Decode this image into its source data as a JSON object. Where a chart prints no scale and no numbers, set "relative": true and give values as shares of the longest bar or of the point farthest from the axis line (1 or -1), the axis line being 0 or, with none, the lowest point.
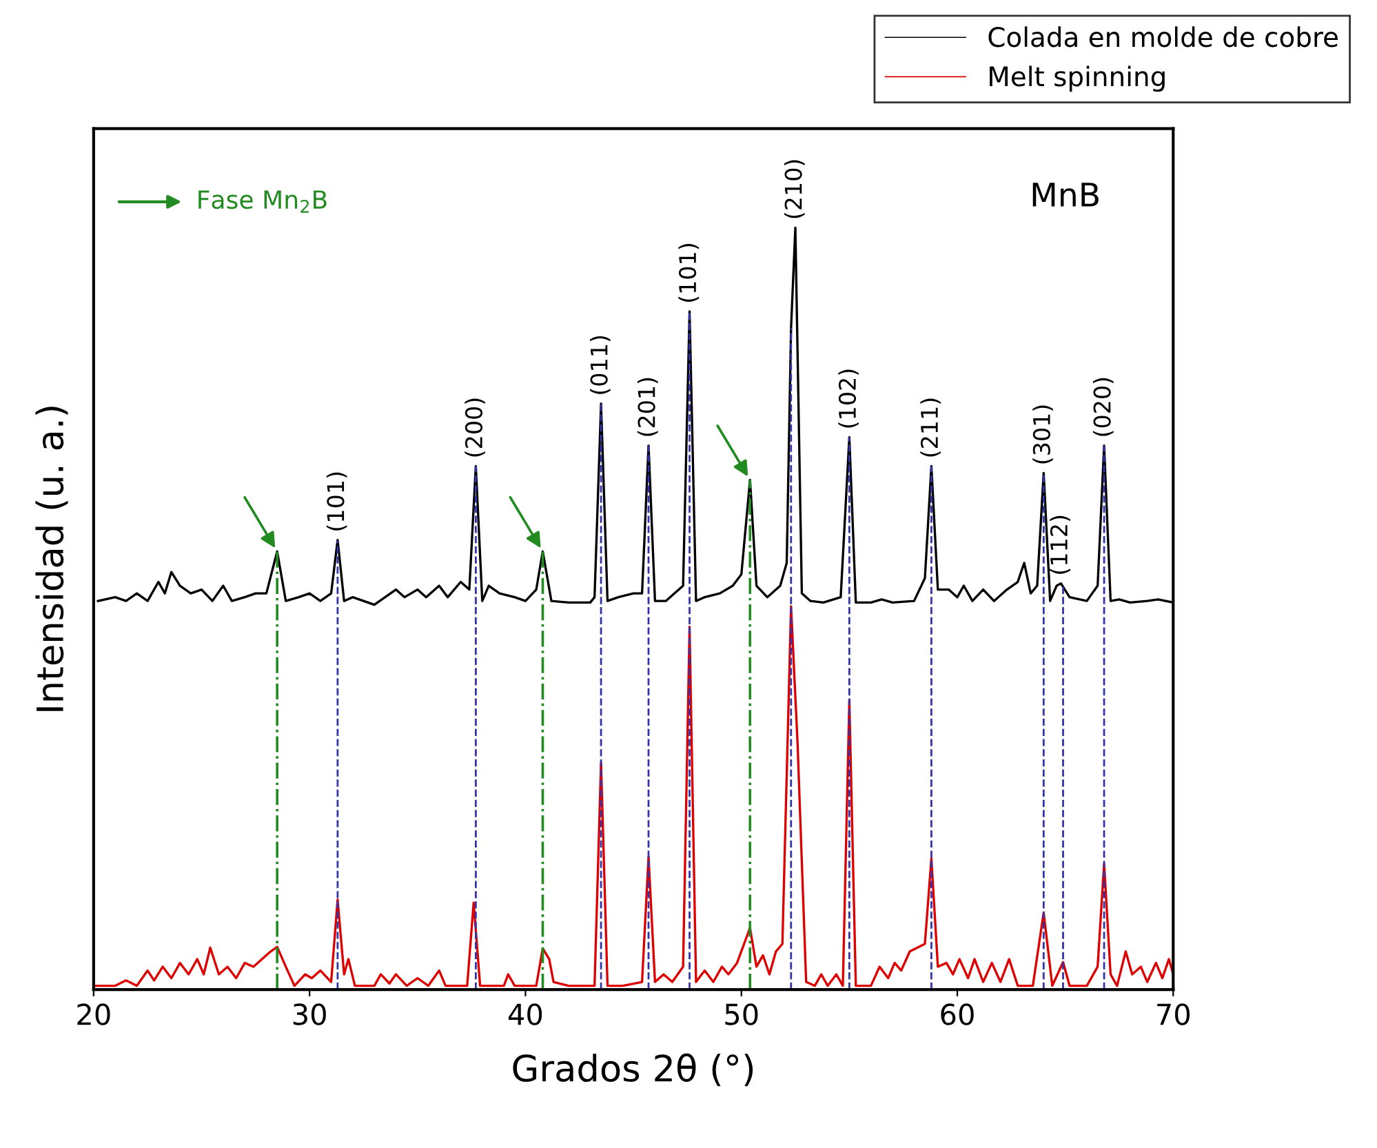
{
  "chart_data": {
    "type": "line",
    "title": "MnB",
    "xlabel": "Grados 2θ (°)",
    "ylabel": "Intensidad (u. a.)",
    "relative": true,
    "xlim": [
      20,
      70
    ],
    "xticks": [
      20,
      30,
      40,
      50,
      60,
      70
    ],
    "grid": false,
    "legend": "top right",
    "series": [
      {
        "name": "Colada en molde de cobre",
        "color": "#000000",
        "x": [
          20.2,
          21,
          21.5,
          22,
          22.5,
          23,
          23.3,
          23.6,
          24,
          24.5,
          25,
          25.5,
          26,
          26.4,
          27,
          27.5,
          28,
          28.5,
          28.9,
          29.5,
          30,
          30.5,
          31,
          31.3,
          31.6,
          32,
          33,
          34,
          34.4,
          35,
          35.4,
          36,
          36.4,
          37,
          37.4,
          37.7,
          38,
          38.3,
          38.8,
          39.5,
          40,
          40.5,
          40.8,
          41.2,
          42,
          43,
          43.2,
          43.5,
          43.8,
          44.3,
          45,
          45.4,
          45.7,
          46,
          46.5,
          47.3,
          47.6,
          47.9,
          48.3,
          49,
          49.6,
          50,
          50.4,
          50.7,
          51.2,
          51.8,
          52.1,
          52.3,
          52.5,
          52.8,
          53.2,
          53.8,
          54.6,
          55.0,
          55.3,
          56,
          56.5,
          57,
          58,
          58.5,
          58.8,
          59.1,
          59.6,
          60,
          60.3,
          60.7,
          61.2,
          61.7,
          62.3,
          62.8,
          63.1,
          63.4,
          63.7,
          64.0,
          64.3,
          64.6,
          64.8,
          65.2,
          66,
          66.5,
          66.8,
          67.1,
          67.5,
          68,
          68.8,
          69.3,
          70
        ],
        "values": [
          0.51,
          0.515,
          0.51,
          0.52,
          0.51,
          0.535,
          0.52,
          0.548,
          0.53,
          0.52,
          0.525,
          0.51,
          0.53,
          0.51,
          0.515,
          0.52,
          0.52,
          0.575,
          0.51,
          0.515,
          0.52,
          0.51,
          0.52,
          0.59,
          0.51,
          0.515,
          0.505,
          0.525,
          0.515,
          0.525,
          0.515,
          0.53,
          0.515,
          0.535,
          0.525,
          0.687,
          0.51,
          0.53,
          0.52,
          0.515,
          0.51,
          0.525,
          0.575,
          0.51,
          0.508,
          0.508,
          0.515,
          0.769,
          0.51,
          0.515,
          0.52,
          0.52,
          0.714,
          0.51,
          0.51,
          0.53,
          0.89,
          0.51,
          0.515,
          0.52,
          0.53,
          0.545,
          0.669,
          0.53,
          0.515,
          0.53,
          0.56,
          0.868,
          1.0,
          0.52,
          0.51,
          0.508,
          0.515,
          0.725,
          0.508,
          0.508,
          0.512,
          0.508,
          0.51,
          0.54,
          0.687,
          0.525,
          0.525,
          0.515,
          0.53,
          0.51,
          0.525,
          0.51,
          0.525,
          0.535,
          0.56,
          0.52,
          0.53,
          0.678,
          0.51,
          0.53,
          0.533,
          0.515,
          0.51,
          0.53,
          0.714,
          0.51,
          0.512,
          0.508,
          0.51,
          0.512,
          0.508
        ]
      },
      {
        "name": "Melt spinning",
        "color": "#dd0000",
        "x": [
          20,
          21,
          21.5,
          22,
          22.5,
          22.8,
          23.2,
          23.6,
          24,
          24.4,
          24.8,
          25.1,
          25.4,
          25.8,
          26.2,
          26.6,
          27,
          27.4,
          27.8,
          28.2,
          28.5,
          28.9,
          29.3,
          29.8,
          30.1,
          30.5,
          31,
          31.3,
          31.6,
          31.8,
          32.1,
          33,
          33.3,
          33.7,
          34,
          34.5,
          35,
          35.5,
          36,
          36.3,
          37.3,
          37.6,
          37.9,
          39,
          39.2,
          39.5,
          40.5,
          40.8,
          41.1,
          41.3,
          42,
          43.2,
          43.5,
          43.8,
          44.5,
          45.4,
          45.7,
          46,
          46.4,
          46.8,
          47.3,
          47.6,
          47.9,
          48.3,
          48.7,
          49.1,
          49.4,
          49.8,
          50.4,
          50.7,
          51,
          51.3,
          51.6,
          51.9,
          52.3,
          52.6,
          53,
          53.4,
          53.7,
          54,
          54.4,
          54.7,
          55,
          55.3,
          56,
          56.4,
          56.8,
          57.1,
          57.4,
          57.8,
          58.5,
          58.8,
          59.1,
          59.5,
          59.8,
          60.1,
          60.5,
          60.8,
          61.2,
          61.6,
          62,
          62.4,
          62.8,
          63.5,
          64,
          64.4,
          64.9,
          65.2,
          66,
          66.5,
          66.8,
          67.1,
          67.4,
          67.8,
          68.1,
          68.5,
          68.8,
          69.2,
          69.5,
          69.8,
          70
        ],
        "values": [
          0.005,
          0.005,
          0.012,
          0.005,
          0.025,
          0.012,
          0.03,
          0.015,
          0.035,
          0.02,
          0.04,
          0.02,
          0.055,
          0.02,
          0.03,
          0.015,
          0.035,
          0.03,
          0.04,
          0.05,
          0.056,
          0.03,
          0.005,
          0.02,
          0.015,
          0.025,
          0.01,
          0.118,
          0.02,
          0.04,
          0.005,
          0.005,
          0.02,
          0.008,
          0.02,
          0.005,
          0.015,
          0.005,
          0.025,
          0.005,
          0.005,
          0.114,
          0.005,
          0.005,
          0.02,
          0.005,
          0.005,
          0.054,
          0.04,
          0.01,
          0.005,
          0.005,
          0.298,
          0.005,
          0.005,
          0.01,
          0.174,
          0.01,
          0.02,
          0.01,
          0.03,
          0.476,
          0.01,
          0.025,
          0.01,
          0.03,
          0.02,
          0.035,
          0.081,
          0.03,
          0.045,
          0.02,
          0.05,
          0.06,
          0.503,
          0.325,
          0.01,
          0.005,
          0.02,
          0.005,
          0.02,
          0.005,
          0.38,
          0.005,
          0.005,
          0.03,
          0.015,
          0.035,
          0.025,
          0.05,
          0.06,
          0.172,
          0.03,
          0.035,
          0.02,
          0.04,
          0.015,
          0.04,
          0.01,
          0.035,
          0.01,
          0.04,
          0.005,
          0.005,
          0.101,
          0.005,
          0.036,
          0.005,
          0.005,
          0.03,
          0.165,
          0.02,
          0.005,
          0.05,
          0.02,
          0.03,
          0.01,
          0.035,
          0.015,
          0.04,
          0.02
        ]
      }
    ],
    "ref_lines": [
      {
        "axis": "x",
        "value": 28.5,
        "color": "#228b22",
        "line_style": "dashdot"
      },
      {
        "axis": "x",
        "value": 31.3,
        "color": "#3333aa",
        "line_style": "dashed"
      },
      {
        "axis": "x",
        "value": 37.7,
        "color": "#3333aa",
        "line_style": "dashed"
      },
      {
        "axis": "x",
        "value": 40.8,
        "color": "#228b22",
        "line_style": "dashdot"
      },
      {
        "axis": "x",
        "value": 43.5,
        "color": "#3333aa",
        "line_style": "dashed"
      },
      {
        "axis": "x",
        "value": 45.7,
        "color": "#3333aa",
        "line_style": "dashed"
      },
      {
        "axis": "x",
        "value": 47.6,
        "color": "#3333aa",
        "line_style": "dashed"
      },
      {
        "axis": "x",
        "value": 50.4,
        "color": "#228b22",
        "line_style": "dashdot"
      },
      {
        "axis": "x",
        "value": 52.3,
        "color": "#3333aa",
        "line_style": "dashed"
      },
      {
        "axis": "x",
        "value": 55.0,
        "color": "#3333aa",
        "line_style": "dashed"
      },
      {
        "axis": "x",
        "value": 58.8,
        "color": "#3333aa",
        "line_style": "dashed"
      },
      {
        "axis": "x",
        "value": 64.0,
        "color": "#3333aa",
        "line_style": "dashed"
      },
      {
        "axis": "x",
        "value": 64.9,
        "color": "#3333aa",
        "line_style": "dashed"
      },
      {
        "axis": "x",
        "value": 66.8,
        "color": "#3333aa",
        "line_style": "dashed"
      }
    ],
    "annotations": [
      "Fase Mn$_{2}$B",
      {
        "text": "(101)",
        "x": 31.3,
        "y": 0.59
      },
      {
        "text": "(200)",
        "x": 37.7,
        "y": 0.687
      },
      {
        "text": "(011)",
        "x": 43.5,
        "y": 0.769
      },
      {
        "text": "(201)",
        "x": 45.7,
        "y": 0.714
      },
      {
        "text": "(101)",
        "x": 47.6,
        "y": 0.89
      },
      {
        "text": "(210)",
        "x": 52.5,
        "y": 1.0
      },
      {
        "text": "(102)",
        "x": 55.0,
        "y": 0.725
      },
      {
        "text": "(211)",
        "x": 58.8,
        "y": 0.687
      },
      {
        "text": "(301)",
        "x": 64.0,
        "y": 0.678
      },
      {
        "text": "(112)",
        "x": 64.8,
        "y": 0.533
      },
      {
        "text": "(020)",
        "x": 66.8,
        "y": 0.714
      }
    ]
  }
}
